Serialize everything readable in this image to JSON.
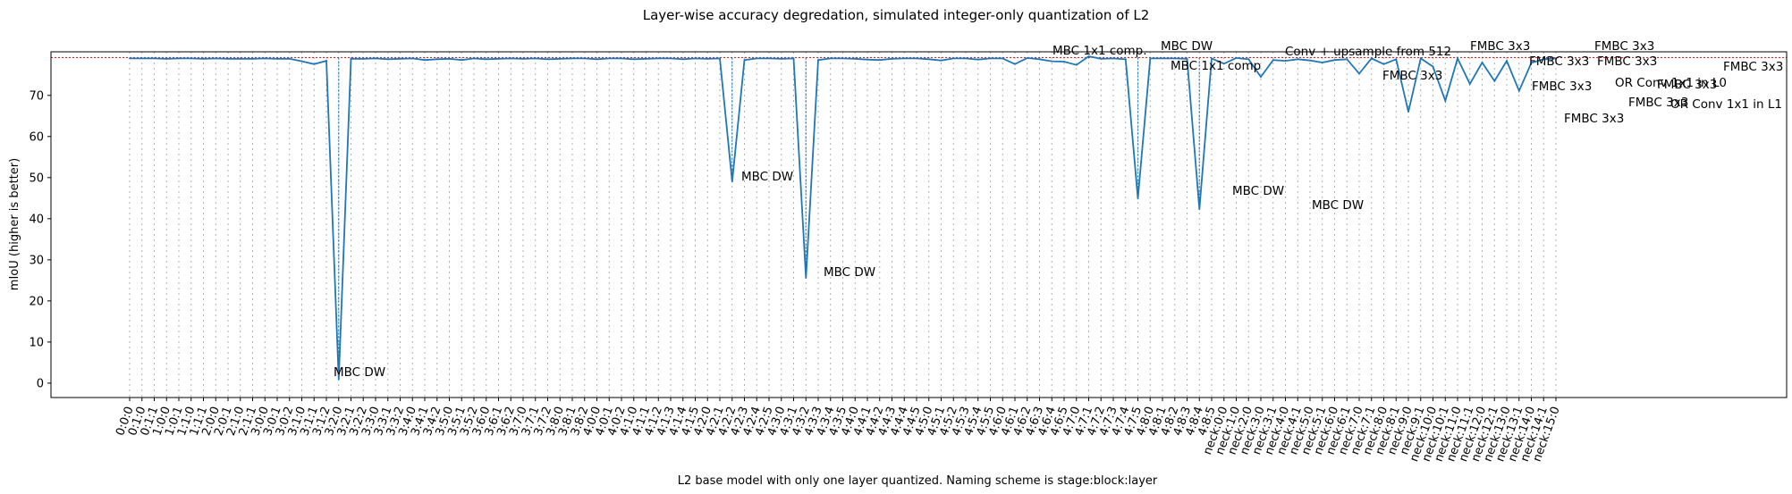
{
  "chart_data": {
    "type": "line",
    "title": "Layer-wise accuracy degredation, simulated integer-only quantization of L2",
    "xlabel": "L2 base model with only one layer quantized. Naming scheme is stage:block:layer",
    "ylabel": "mIoU (higher is better)",
    "ylim": [
      -3.5,
      80.6
    ],
    "yticks": [
      0,
      10,
      20,
      30,
      40,
      50,
      60,
      70
    ],
    "baseline": 79.2,
    "grid": "vertical dotted lines at each x tick",
    "categories": [
      "0:0:0",
      "0:1:0",
      "0:1:1",
      "1:0:0",
      "1:0:1",
      "1:1:0",
      "1:1:1",
      "2:0:0",
      "2:0:1",
      "2:1:0",
      "2:1:1",
      "3:0:0",
      "3:0:1",
      "3:0:2",
      "3:1:0",
      "3:1:1",
      "3:1:2",
      "3:2:0",
      "3:2:1",
      "3:2:2",
      "3:3:0",
      "3:3:1",
      "3:3:2",
      "3:4:0",
      "3:4:1",
      "3:4:2",
      "3:5:0",
      "3:5:1",
      "3:5:2",
      "3:6:0",
      "3:6:1",
      "3:6:2",
      "3:7:0",
      "3:7:1",
      "3:7:2",
      "3:8:0",
      "3:8:1",
      "3:8:2",
      "4:0:0",
      "4:0:1",
      "4:0:2",
      "4:1:0",
      "4:1:1",
      "4:1:2",
      "4:1:3",
      "4:1:4",
      "4:1:5",
      "4:2:0",
      "4:2:1",
      "4:2:2",
      "4:2:3",
      "4:2:4",
      "4:2:5",
      "4:3:0",
      "4:3:1",
      "4:3:2",
      "4:3:3",
      "4:3:4",
      "4:3:5",
      "4:4:0",
      "4:4:1",
      "4:4:2",
      "4:4:3",
      "4:4:4",
      "4:4:5",
      "4:5:0",
      "4:5:1",
      "4:5:2",
      "4:5:3",
      "4:5:4",
      "4:5:5",
      "4:6:0",
      "4:6:1",
      "4:6:2",
      "4:6:3",
      "4:6:4",
      "4:6:5",
      "4:7:0",
      "4:7:1",
      "4:7:2",
      "4:7:3",
      "4:7:4",
      "4:7:5",
      "4:8:0",
      "4:8:1",
      "4:8:2",
      "4:8:3",
      "4:8:4",
      "4:8:5",
      "neck:0:0",
      "neck:1:0",
      "neck:2:0",
      "neck:3:0",
      "neck:3:1",
      "neck:4:0",
      "neck:4:1",
      "neck:5:0",
      "neck:5:1",
      "neck:6:0",
      "neck:6:1",
      "neck:7:0",
      "neck:7:1",
      "neck:8:0",
      "neck:8:1",
      "neck:9:0",
      "neck:9:1",
      "neck:10:0",
      "neck:10:1",
      "neck:11:0",
      "neck:11:1",
      "neck:12:0",
      "neck:12:1",
      "neck:13:0",
      "neck:13:1",
      "neck:14:0",
      "neck:14:1",
      "neck:15:0"
    ],
    "values": [
      79.0,
      79.0,
      79.0,
      78.9,
      79.0,
      79.0,
      78.9,
      79.0,
      78.9,
      78.9,
      78.9,
      79.0,
      78.9,
      78.9,
      78.3,
      77.6,
      78.4,
      0.9,
      78.9,
      78.9,
      79.0,
      78.8,
      78.9,
      79.0,
      78.6,
      78.8,
      78.9,
      78.6,
      79.0,
      78.8,
      78.9,
      79.0,
      78.9,
      79.0,
      78.8,
      78.9,
      79.0,
      79.0,
      78.8,
      79.0,
      79.0,
      78.8,
      78.9,
      79.0,
      79.0,
      78.8,
      79.0,
      78.9,
      79.0,
      49.0,
      78.6,
      79.0,
      79.0,
      78.9,
      79.0,
      25.6,
      78.6,
      79.0,
      79.0,
      78.9,
      78.7,
      78.6,
      78.9,
      79.0,
      79.0,
      78.8,
      78.5,
      79.0,
      79.0,
      78.7,
      79.0,
      79.0,
      77.6,
      79.1,
      78.8,
      78.3,
      78.2,
      77.4,
      79.5,
      78.9,
      79.0,
      78.8,
      44.9,
      79.0,
      79.0,
      79.0,
      78.9,
      42.3,
      79.0,
      77.7,
      79.1,
      78.8,
      74.5,
      78.6,
      78.4,
      78.8,
      78.5,
      78.0,
      78.6,
      78.8,
      75.3,
      79.0,
      77.6,
      78.8,
      66.0,
      79.0,
      77.0,
      68.7,
      79.0,
      72.8,
      78.0,
      73.5,
      78.4,
      71.1,
      77.9,
      78.8,
      79.0
    ],
    "annotations": [
      {
        "text": "MBC DW"
      },
      {
        "text": "MBC DW"
      },
      {
        "text": "MBC DW"
      },
      {
        "text": "MBC 1x1 comp."
      },
      {
        "text": "MBC DW"
      },
      {
        "text": "MBC 1x1 comp"
      },
      {
        "text": "MBC DW"
      },
      {
        "text": "Conv + upsample from 512"
      },
      {
        "text": "MBC DW"
      },
      {
        "text": "FMBC 3x3"
      },
      {
        "text": "FMBC 3x3"
      },
      {
        "text": "FMBC 3x3"
      },
      {
        "text": "FMBC 3x3"
      },
      {
        "text": "FMBC 3x3"
      },
      {
        "text": "FMBC 3x3"
      },
      {
        "text": "FMBC 3x3"
      },
      {
        "text": "OR Conv 1x1 in L0"
      },
      {
        "text": "FMBC 3x3"
      },
      {
        "text": "FMBC 3x3"
      },
      {
        "text": "OR Conv 1x1 in L1"
      },
      {
        "text": "FMBC 3x3"
      }
    ]
  }
}
